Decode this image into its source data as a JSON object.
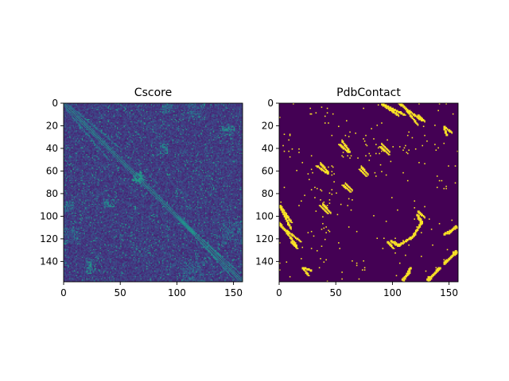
{
  "colormap": {
    "name": "viridis",
    "low": "#440154",
    "high": "#fde725"
  },
  "chart_data": [
    {
      "type": "heatmap",
      "title": "Cscore",
      "size": 158,
      "x_ticks": [
        0,
        50,
        100,
        150
      ],
      "y_ticks": [
        0,
        20,
        40,
        60,
        80,
        100,
        120,
        140
      ],
      "x_tick_labels": [
        "0",
        "50",
        "100",
        "150"
      ],
      "y_tick_labels": [
        "0",
        "20",
        "40",
        "60",
        "80",
        "100",
        "120",
        "140"
      ],
      "xlim": [
        0,
        158
      ],
      "ylim": [
        158,
        0
      ],
      "background_level": 0.18,
      "features": [
        {
          "kind": "diagonal",
          "start": 0,
          "end": 158,
          "intensity": 0.55
        },
        {
          "kind": "band",
          "from": [
            2,
            5
          ],
          "to": [
            40,
            50
          ],
          "intensity": 0.38
        },
        {
          "kind": "band",
          "from": [
            60,
            60
          ],
          "to": [
            80,
            80
          ],
          "intensity": 0.48
        },
        {
          "kind": "band",
          "from": [
            100,
            100
          ],
          "to": [
            155,
            150
          ],
          "intensity": 0.45
        },
        {
          "kind": "block",
          "rows": [
            60,
            70
          ],
          "cols": [
            62,
            72
          ],
          "intensity": 0.5
        },
        {
          "kind": "block",
          "rows": [
            20,
            25
          ],
          "cols": [
            140,
            152
          ],
          "intensity": 0.55
        },
        {
          "kind": "block",
          "rows": [
            138,
            150
          ],
          "cols": [
            20,
            28
          ],
          "intensity": 0.4
        },
        {
          "kind": "block",
          "rows": [
            110,
            125
          ],
          "cols": [
            0,
            15
          ],
          "intensity": 0.35
        },
        {
          "kind": "block",
          "rows": [
            105,
            125
          ],
          "cols": [
            140,
            158
          ],
          "intensity": 0.35
        },
        {
          "kind": "block",
          "rows": [
            85,
            92
          ],
          "cols": [
            35,
            45
          ],
          "intensity": 0.42
        },
        {
          "kind": "block",
          "rows": [
            0,
            10
          ],
          "cols": [
            88,
            96
          ],
          "intensity": 0.42
        },
        {
          "kind": "block",
          "rows": [
            35,
            40
          ],
          "cols": [
            85,
            90
          ],
          "intensity": 0.4
        }
      ]
    },
    {
      "type": "heatmap",
      "title": "PdbContact",
      "size": 158,
      "x_ticks": [
        0,
        50,
        100,
        150
      ],
      "y_ticks": [
        0,
        20,
        40,
        60,
        80,
        100,
        120,
        140
      ],
      "x_tick_labels": [
        "0",
        "50",
        "100",
        "150"
      ],
      "y_tick_labels": [
        "0",
        "20",
        "40",
        "60",
        "80",
        "100",
        "120",
        "140"
      ],
      "xlim": [
        0,
        158
      ],
      "ylim": [
        158,
        0
      ],
      "background_level": 0.0,
      "features": [
        {
          "kind": "band",
          "from": [
            0,
            90
          ],
          "to": [
            10,
            105
          ],
          "intensity": 1
        },
        {
          "kind": "band",
          "from": [
            0,
            108
          ],
          "to": [
            18,
            122
          ],
          "intensity": 1
        },
        {
          "kind": "band",
          "from": [
            32,
            55
          ],
          "to": [
            42,
            62
          ],
          "intensity": 1
        },
        {
          "kind": "band",
          "from": [
            35,
            90
          ],
          "to": [
            42,
            97
          ],
          "intensity": 1
        },
        {
          "kind": "band",
          "from": [
            52,
            36
          ],
          "to": [
            60,
            43
          ],
          "intensity": 1
        },
        {
          "kind": "band",
          "from": [
            55,
            72
          ],
          "to": [
            62,
            78
          ],
          "intensity": 1
        },
        {
          "kind": "band",
          "from": [
            70,
            58
          ],
          "to": [
            76,
            64
          ],
          "intensity": 1
        },
        {
          "kind": "band",
          "from": [
            88,
            38
          ],
          "to": [
            96,
            45
          ],
          "intensity": 1
        },
        {
          "kind": "band",
          "from": [
            90,
            0
          ],
          "to": [
            110,
            10
          ],
          "intensity": 1
        },
        {
          "kind": "band",
          "from": [
            105,
            0
          ],
          "to": [
            125,
            15
          ],
          "intensity": 1
        },
        {
          "kind": "band",
          "from": [
            20,
            145
          ],
          "to": [
            25,
            152
          ],
          "intensity": 1
        },
        {
          "kind": "band",
          "from": [
            95,
            122
          ],
          "to": [
            100,
            128
          ],
          "intensity": 1
        },
        {
          "kind": "band",
          "from": [
            121,
            98
          ],
          "to": [
            125,
            104
          ],
          "intensity": 1
        },
        {
          "kind": "band",
          "from": [
            125,
            105
          ],
          "to": [
            115,
            120
          ],
          "intensity": 1
        },
        {
          "kind": "band",
          "from": [
            100,
            122
          ],
          "to": [
            105,
            125
          ],
          "intensity": 1
        },
        {
          "kind": "band",
          "from": [
            115,
            145
          ],
          "to": [
            108,
            158
          ],
          "intensity": 1
        },
        {
          "kind": "band",
          "from": [
            140,
            145
          ],
          "to": [
            130,
            158
          ],
          "intensity": 1
        },
        {
          "kind": "band",
          "from": [
            145,
            22
          ],
          "to": [
            147,
            28
          ],
          "intensity": 1
        },
        {
          "kind": "band",
          "from": [
            155,
            108
          ],
          "to": [
            148,
            115
          ],
          "intensity": 1
        },
        {
          "kind": "band",
          "from": [
            155,
            130
          ],
          "to": [
            145,
            142
          ],
          "intensity": 1
        },
        {
          "kind": "band",
          "from": [
            10,
            122
          ],
          "to": [
            15,
            128
          ],
          "intensity": 1
        },
        {
          "kind": "scatter",
          "count": 120,
          "intensity": 1
        }
      ]
    }
  ]
}
